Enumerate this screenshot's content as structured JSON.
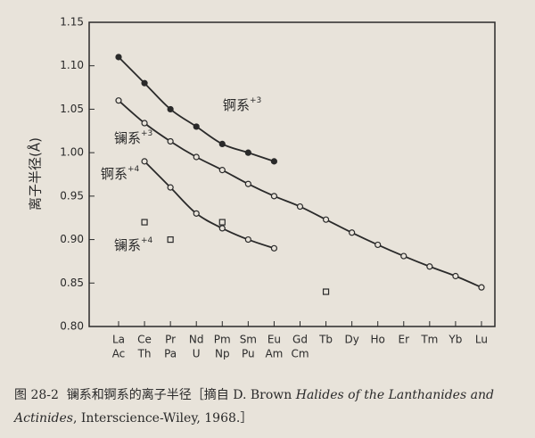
{
  "chart_data": {
    "type": "line",
    "y_label": "离子半径(Å)",
    "categories": [
      [
        "La",
        "Ac"
      ],
      [
        "Ce",
        "Th"
      ],
      [
        "Pr",
        "Pa"
      ],
      [
        "Nd",
        "U"
      ],
      [
        "Pm",
        "Np"
      ],
      [
        "Sm",
        "Pu"
      ],
      [
        "Eu",
        "Am"
      ],
      [
        "Gd",
        "Cm"
      ],
      [
        "Tb"
      ],
      [
        "Dy"
      ],
      [
        "Ho"
      ],
      [
        "Er"
      ],
      [
        "Tm"
      ],
      [
        "Yb"
      ],
      [
        "Lu"
      ]
    ],
    "ylim": [
      0.8,
      1.15
    ],
    "yticks": [
      {
        "value": 0.8,
        "label": "0.80"
      },
      0.85,
      {
        "value": 0.9,
        "label": "0.90"
      },
      0.95,
      {
        "value": 1.0,
        "label": "1.00"
      },
      1.05,
      {
        "value": 1.1,
        "label": "1.10"
      },
      1.15
    ],
    "series": [
      {
        "name": "锕系",
        "charge": "+3",
        "marker": "filled-circle",
        "line": true,
        "color": "#2a2a2a",
        "values": [
          1.11,
          1.08,
          1.05,
          1.03,
          1.01,
          1.0,
          0.99,
          null,
          null,
          null,
          null,
          null,
          null,
          null,
          null
        ]
      },
      {
        "name": "镧系",
        "charge": "+3",
        "marker": "circle",
        "line": true,
        "color": "#2a2a2a",
        "values": [
          1.06,
          1.034,
          1.013,
          0.995,
          0.98,
          0.964,
          0.95,
          0.938,
          0.923,
          0.908,
          0.894,
          0.881,
          0.869,
          0.858,
          0.845
        ]
      },
      {
        "name": "锕系",
        "charge": "+4",
        "marker": "circle",
        "line": true,
        "color": "#2a2a2a",
        "values": [
          null,
          0.99,
          0.96,
          0.93,
          0.913,
          0.9,
          0.89,
          null,
          null,
          null,
          null,
          null,
          null,
          null,
          null
        ]
      },
      {
        "name": "镧系",
        "charge": "+4",
        "marker": "square",
        "line": false,
        "color": "#2a2a2a",
        "values": [
          null,
          0.92,
          0.9,
          null,
          0.92,
          null,
          null,
          null,
          0.84,
          null,
          null,
          null,
          null,
          null,
          null
        ]
      }
    ],
    "caption": {
      "number": "图 28-2",
      "text": "镧系和锕系的离子半径",
      "source_prefix": "［摘自 D. Brown ",
      "book_title": "Halides of the Lanthanides and Actinides",
      "source_suffix": ", Interscience-Wiley, 1968.］"
    }
  }
}
